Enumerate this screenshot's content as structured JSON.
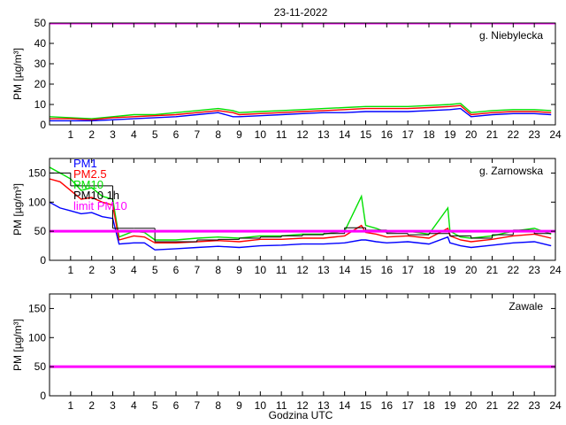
{
  "title": "23-11-2022",
  "xlabel": "Godzina UTC",
  "colors": {
    "pm1": "#0000ff",
    "pm25": "#ff0000",
    "pm10": "#00e000",
    "pm10_1h": "#000000",
    "limit": "#ff00ff"
  },
  "chart_data": [
    {
      "type": "line",
      "station": "g. Niebylecka",
      "ylabel": "PM [µg/m³]",
      "xlim": [
        0,
        24
      ],
      "ylim": [
        0,
        50
      ],
      "yticks": [
        0,
        10,
        20,
        30,
        40,
        50
      ],
      "xticks": [
        1,
        2,
        3,
        4,
        5,
        6,
        7,
        8,
        9,
        10,
        11,
        12,
        13,
        14,
        15,
        16,
        17,
        18,
        19,
        20,
        21,
        22,
        23,
        24
      ],
      "limit_value": 50,
      "x": [
        0,
        1,
        2,
        3,
        4,
        5,
        6,
        7,
        8,
        8.7,
        9,
        10,
        11,
        12,
        13,
        14,
        15,
        16,
        17,
        18,
        19,
        19.5,
        20,
        21,
        22,
        23,
        23.8
      ],
      "series": [
        {
          "key": "pm10",
          "values": [
            4,
            3.5,
            3,
            4,
            5,
            5,
            6,
            7,
            8,
            7,
            6,
            6.5,
            7,
            7.5,
            8,
            8.5,
            9,
            9,
            9,
            9.5,
            10,
            10.5,
            6,
            7,
            7.5,
            7.5,
            7
          ]
        },
        {
          "key": "pm25",
          "values": [
            3,
            3,
            2.5,
            3.5,
            4,
            4.5,
            5,
            6,
            7,
            6,
            5,
            5.5,
            6,
            6.5,
            7,
            7.5,
            8,
            8,
            8,
            8.5,
            9,
            9.5,
            5,
            6,
            6.5,
            6.5,
            6
          ]
        },
        {
          "key": "pm1",
          "values": [
            2,
            2,
            2,
            2.5,
            3,
            3.5,
            4,
            5,
            6,
            4,
            4,
            4.5,
            5,
            5.5,
            6,
            6,
            6.5,
            6.5,
            6.5,
            7,
            7.5,
            8,
            4,
            5,
            5.5,
            5.5,
            5
          ]
        }
      ]
    },
    {
      "type": "line",
      "station": "g. Zarnowska",
      "ylabel": "PM [µg/m³]",
      "xlim": [
        0,
        24
      ],
      "ylim": [
        0,
        175
      ],
      "yticks": [
        0,
        50,
        100,
        150
      ],
      "xticks": [
        1,
        2,
        3,
        4,
        5,
        6,
        7,
        8,
        9,
        10,
        11,
        12,
        13,
        14,
        15,
        16,
        17,
        18,
        19,
        20,
        21,
        22,
        23,
        24
      ],
      "limit_value": 50,
      "legend": [
        "PM1",
        "PM2.5",
        "PM10",
        "PM10 1h",
        "limit PM10"
      ],
      "x": [
        0,
        0.5,
        1,
        1.5,
        2,
        2.5,
        3,
        3.3,
        4,
        4.5,
        5,
        6,
        7,
        8,
        9,
        10,
        11,
        12,
        13,
        14,
        14.8,
        15,
        15.5,
        16,
        17,
        18,
        18.9,
        19,
        19.5,
        20,
        21,
        22,
        23,
        23.8
      ],
      "series": [
        {
          "key": "pm10",
          "values": [
            160,
            150,
            140,
            120,
            125,
            110,
            105,
            40,
            50,
            48,
            35,
            35,
            38,
            40,
            38,
            42,
            42,
            45,
            45,
            50,
            110,
            60,
            55,
            48,
            50,
            45,
            90,
            50,
            40,
            38,
            42,
            50,
            55,
            45
          ]
        },
        {
          "key": "pm25",
          "values": [
            140,
            135,
            120,
            105,
            108,
            100,
            95,
            35,
            42,
            40,
            30,
            30,
            32,
            34,
            32,
            36,
            36,
            38,
            38,
            42,
            60,
            48,
            45,
            40,
            42,
            38,
            55,
            42,
            35,
            32,
            36,
            42,
            45,
            38
          ]
        },
        {
          "key": "pm1",
          "values": [
            100,
            90,
            85,
            80,
            82,
            75,
            72,
            28,
            30,
            30,
            18,
            20,
            22,
            24,
            22,
            25,
            26,
            28,
            28,
            30,
            35,
            35,
            32,
            30,
            32,
            28,
            40,
            30,
            25,
            22,
            26,
            30,
            32,
            25
          ]
        }
      ],
      "pm10_1h": [
        {
          "x0": 0,
          "x1": 1,
          "y": 150
        },
        {
          "x0": 1,
          "x1": 2,
          "y": 128
        },
        {
          "x0": 2,
          "x1": 3,
          "y": 128
        },
        {
          "x0": 3,
          "x1": 4,
          "y": 55
        },
        {
          "x0": 4,
          "x1": 5,
          "y": 55
        },
        {
          "x0": 5,
          "x1": 6,
          "y": 32
        },
        {
          "x0": 6,
          "x1": 7,
          "y": 32
        },
        {
          "x0": 7,
          "x1": 8,
          "y": 35
        },
        {
          "x0": 8,
          "x1": 9,
          "y": 36
        },
        {
          "x0": 9,
          "x1": 10,
          "y": 38
        },
        {
          "x0": 10,
          "x1": 11,
          "y": 40
        },
        {
          "x0": 11,
          "x1": 12,
          "y": 42
        },
        {
          "x0": 12,
          "x1": 13,
          "y": 44
        },
        {
          "x0": 13,
          "x1": 14,
          "y": 46
        },
        {
          "x0": 14,
          "x1": 15,
          "y": 56
        },
        {
          "x0": 15,
          "x1": 16,
          "y": 52
        },
        {
          "x0": 16,
          "x1": 17,
          "y": 46
        },
        {
          "x0": 17,
          "x1": 18,
          "y": 44
        },
        {
          "x0": 18,
          "x1": 19,
          "y": 46
        },
        {
          "x0": 19,
          "x1": 20,
          "y": 42
        },
        {
          "x0": 20,
          "x1": 21,
          "y": 38
        },
        {
          "x0": 21,
          "x1": 22,
          "y": 44
        },
        {
          "x0": 22,
          "x1": 23,
          "y": 52
        },
        {
          "x0": 23,
          "x1": 23.8,
          "y": 46
        }
      ]
    },
    {
      "type": "line",
      "station": "Zawale",
      "ylabel": "PM [µg/m³]",
      "xlim": [
        0,
        24
      ],
      "ylim": [
        0,
        175
      ],
      "yticks": [
        0,
        50,
        100,
        150
      ],
      "xticks": [
        1,
        2,
        3,
        4,
        5,
        6,
        7,
        8,
        9,
        10,
        11,
        12,
        13,
        14,
        15,
        16,
        17,
        18,
        19,
        20,
        21,
        22,
        23,
        24
      ],
      "limit_value": 50,
      "x": [],
      "series": []
    }
  ]
}
